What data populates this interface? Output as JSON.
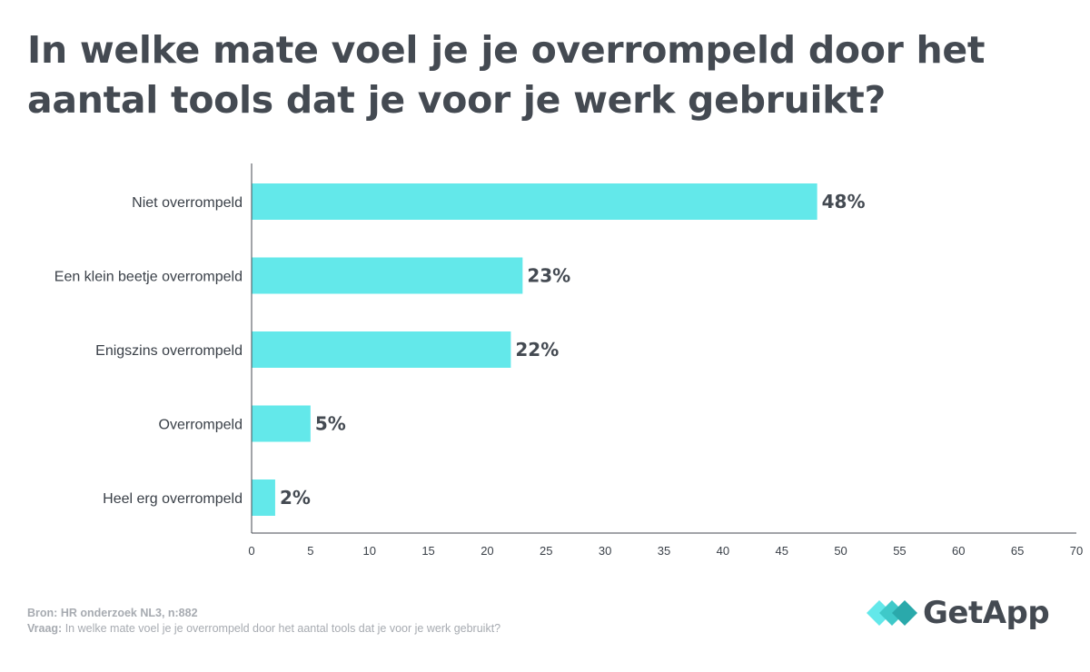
{
  "title": "In welke mate voel je je overrompeld door het aantal tools dat je voor je werk gebruikt?",
  "chart_data": {
    "type": "bar",
    "orientation": "horizontal",
    "categories": [
      "Niet overrompeld",
      "Een klein beetje overrompeld",
      "Enigszins overrompeld",
      "Overrompeld",
      "Heel erg overrompeld"
    ],
    "values": [
      48,
      23,
      22,
      5,
      2
    ],
    "value_labels": [
      "48%",
      "23%",
      "22%",
      "5%",
      "2%"
    ],
    "xlim": [
      0,
      70
    ],
    "xticks": [
      0,
      5,
      10,
      15,
      20,
      25,
      30,
      35,
      40,
      45,
      50,
      55,
      60,
      65,
      70
    ],
    "bar_color": "#63e8ea",
    "grid": false
  },
  "footer": {
    "source_label": "Bron:",
    "source_text": "HR onderzoek NL3, n:882",
    "question_label": "Vraag:",
    "question_text": "In welke mate voel je je overrompeld door het aantal tools dat je voor je werk gebruikt?"
  },
  "logo": {
    "text": "GetApp",
    "colors": [
      "#63e8ea",
      "#3fc9c9",
      "#2aa9ab"
    ]
  }
}
